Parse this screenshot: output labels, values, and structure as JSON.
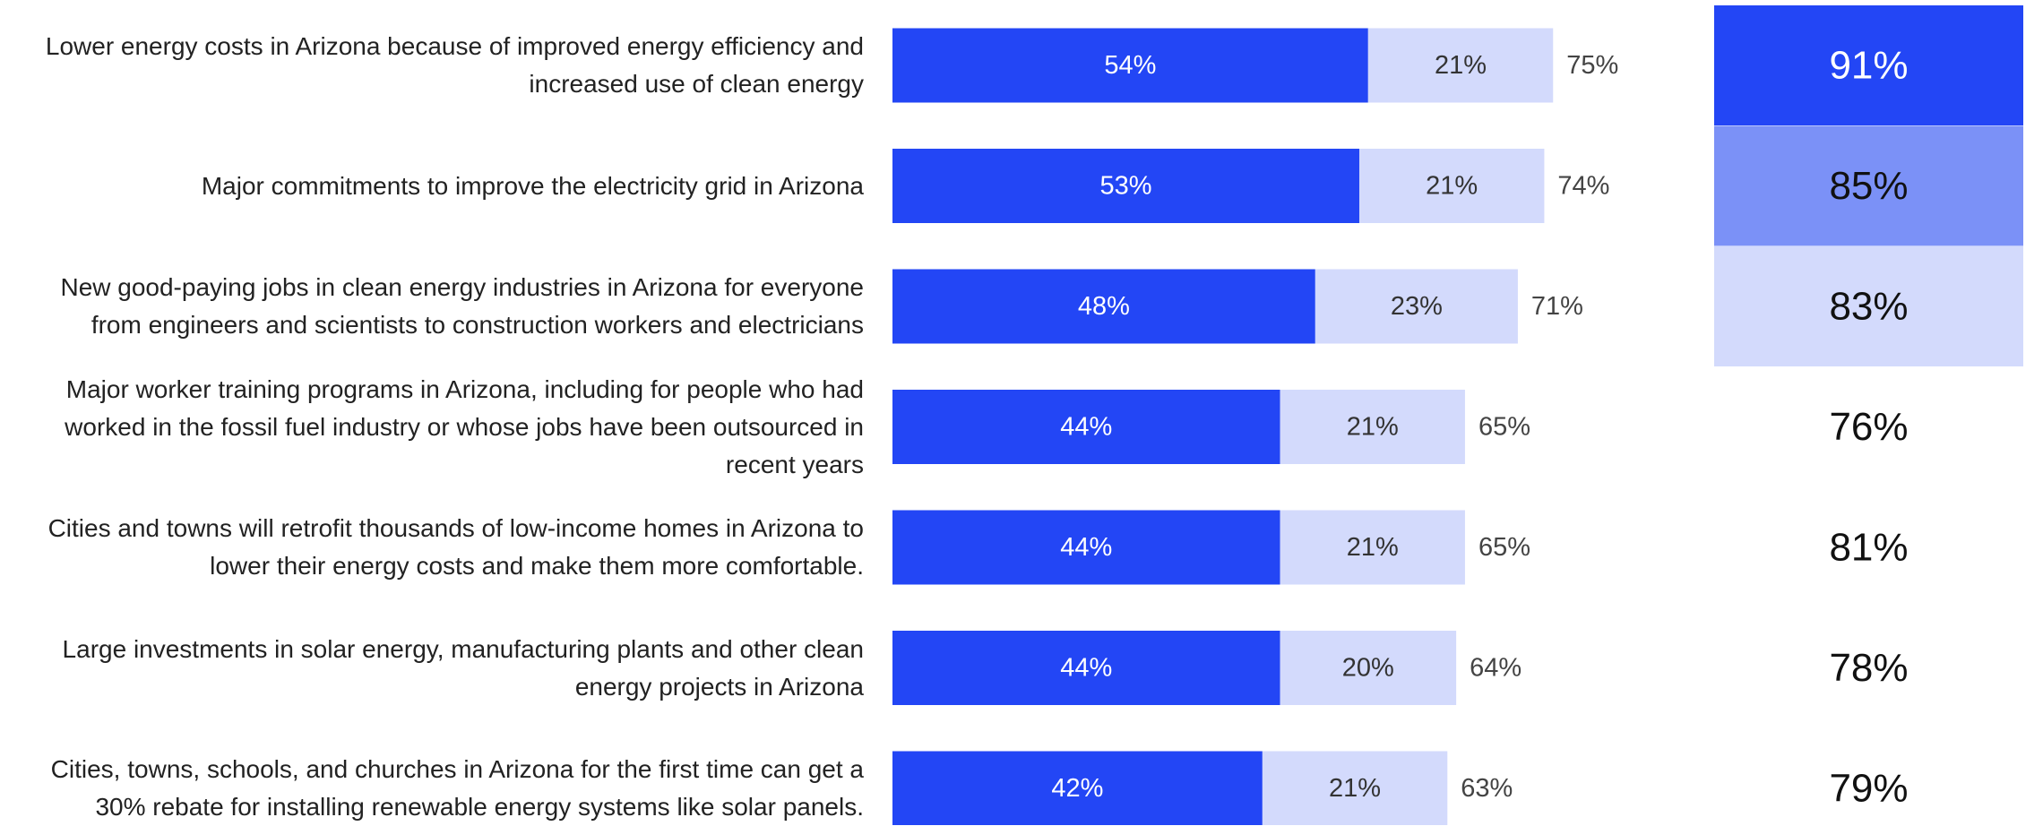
{
  "chart_data": {
    "type": "stacked-bar",
    "categories": [
      "Lower energy costs in Arizona because of improved energy efficiency and increased use of clean energy",
      "Major commitments to improve the electricity grid in Arizona",
      "New good-paying jobs in clean energy industries in Arizona for everyone from engineers and scientists to construction workers and electricians",
      "Major worker training programs in Arizona, including for people who had worked in the fossil fuel industry or whose jobs have been outsourced in recent years",
      "Cities and towns will retrofit thousands of low-income homes in Arizona to lower their energy costs and make them more comfortable.",
      "Large investments in solar energy, manufacturing plants and other clean energy projects in Arizona",
      "Cities, towns, schools, and churches in Arizona for the first time can get a 30% rebate for installing renewable energy systems like solar panels."
    ],
    "series": [
      {
        "color": "#2346f5",
        "label_color": "#ffffff",
        "values": [
          54,
          53,
          48,
          44,
          44,
          44,
          42
        ],
        "value_labels": [
          "54%",
          "53%",
          "48%",
          "44%",
          "44%",
          "44%",
          "42%"
        ]
      },
      {
        "color": "#d3dafc",
        "label_color": "#333333",
        "values": [
          21,
          21,
          23,
          21,
          21,
          20,
          21
        ],
        "value_labels": [
          "21%",
          "21%",
          "23%",
          "21%",
          "21%",
          "20%",
          "21%"
        ]
      }
    ],
    "totals": {
      "values": [
        75,
        74,
        71,
        65,
        65,
        64,
        63
      ],
      "value_labels": [
        "75%",
        "74%",
        "71%",
        "65%",
        "65%",
        "64%",
        "63%"
      ]
    },
    "right_column": {
      "values": [
        91,
        85,
        83,
        76,
        81,
        78,
        79
      ],
      "value_labels": [
        "91%",
        "85%",
        "83%",
        "76%",
        "81%",
        "78%",
        "79%"
      ],
      "fills": [
        "#2346f5",
        "#7b91f7",
        "#d3dafc",
        null,
        null,
        null,
        null
      ],
      "text_colors": [
        "#ffffff",
        "#111111",
        "#111111",
        "#111111",
        "#111111",
        "#111111",
        "#111111"
      ]
    }
  }
}
